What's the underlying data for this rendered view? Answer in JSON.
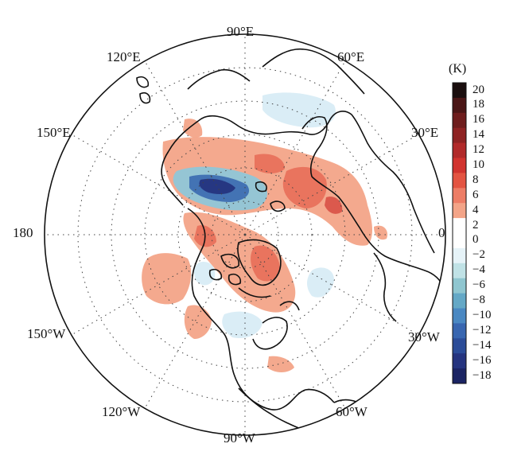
{
  "figure": {
    "projection": "north-polar-stereographic",
    "longitude_labels": [
      {
        "id": "lon-90e",
        "text": "90°E"
      },
      {
        "id": "lon-60e",
        "text": "60°E"
      },
      {
        "id": "lon-30e",
        "text": "30°E"
      },
      {
        "id": "lon-0",
        "text": "0"
      },
      {
        "id": "lon-30w",
        "text": "30°W"
      },
      {
        "id": "lon-60w",
        "text": "60°W"
      },
      {
        "id": "lon-90w",
        "text": "90°W"
      },
      {
        "id": "lon-120w",
        "text": "120°W"
      },
      {
        "id": "lon-150w",
        "text": "150°W"
      },
      {
        "id": "lon-180",
        "text": "180"
      },
      {
        "id": "lon-150e",
        "text": "150°E"
      },
      {
        "id": "lon-120e",
        "text": "120°E"
      }
    ],
    "anomaly_colors": {
      "warm_light": "#f3a488",
      "warm": "#e8715c",
      "warm_strong": "#d9544a",
      "cool_light": "#d8ecf6",
      "cool": "#8fc6d8",
      "cool_strong": "#3e6fb2",
      "cool_extreme": "#25347f"
    }
  },
  "colorbar": {
    "unit": "(K)",
    "levels": [
      {
        "label": "20",
        "color": "#1a0e0e"
      },
      {
        "label": "18",
        "color": "#4a1616"
      },
      {
        "label": "16",
        "color": "#6e1d1d"
      },
      {
        "label": "14",
        "color": "#8e2323"
      },
      {
        "label": "12",
        "color": "#b12a2a"
      },
      {
        "label": "10",
        "color": "#d1342f"
      },
      {
        "label": "8",
        "color": "#e35442"
      },
      {
        "label": "6",
        "color": "#ed7d66"
      },
      {
        "label": "4",
        "color": "#f3a488"
      },
      {
        "label": "2",
        "color": "#ffffff"
      },
      {
        "label": "0",
        "color": "#ffffff"
      },
      {
        "label": "−2",
        "color": "#e6f3f8"
      },
      {
        "label": "−4",
        "color": "#c0e2e6"
      },
      {
        "label": "−6",
        "color": "#8fc6d0"
      },
      {
        "label": "−8",
        "color": "#64a8c6"
      },
      {
        "label": "−10",
        "color": "#4a88c2"
      },
      {
        "label": "−12",
        "color": "#3866b0"
      },
      {
        "label": "−14",
        "color": "#2b4c98"
      },
      {
        "label": "−16",
        "color": "#25347f"
      },
      {
        "label": "−18",
        "color": "#1b2463"
      }
    ]
  }
}
